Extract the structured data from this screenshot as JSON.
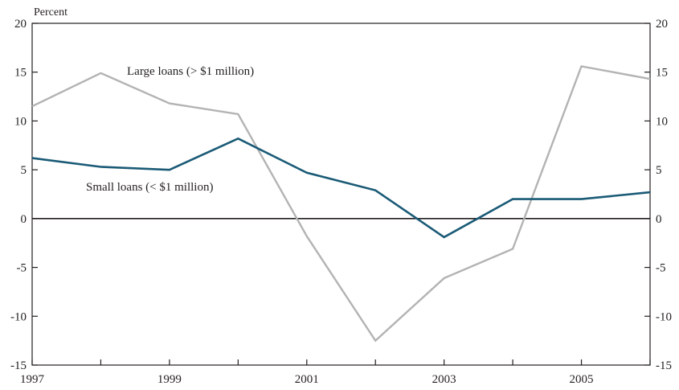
{
  "chart_data": {
    "type": "line",
    "title": "",
    "xlabel": "",
    "ylabel": "Percent",
    "x": [
      1997,
      1998,
      1999,
      2000,
      2001,
      2002,
      2003,
      2004,
      2005,
      2006
    ],
    "xticks": [
      "1997",
      "1999",
      "2001",
      "2003",
      "2005"
    ],
    "ylim": [
      -15,
      20
    ],
    "yticks": [
      "20",
      "15",
      "10",
      "5",
      "0",
      "-5",
      "-10",
      "-15"
    ],
    "grid": false,
    "series": [
      {
        "name": "Large loans (> $1 million)",
        "color": "#b3b3b3",
        "values": [
          11.5,
          14.9,
          11.8,
          10.7,
          -1.8,
          -12.5,
          -6.1,
          -3.1,
          15.6,
          14.3
        ]
      },
      {
        "name": "Small loans (< $1 million)",
        "color": "#1a5a76",
        "values": [
          6.2,
          5.3,
          5.0,
          8.2,
          4.7,
          2.9,
          -1.9,
          2.0,
          2.0,
          2.7
        ]
      }
    ]
  }
}
